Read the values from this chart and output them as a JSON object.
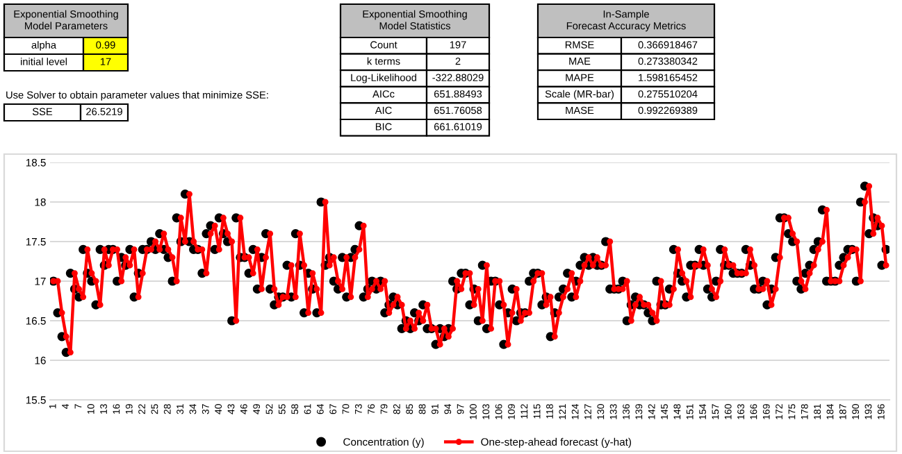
{
  "chart_data": {
    "type": "line",
    "annotations": [
      "Exponential Smoothing\nModel Parameters",
      "alpha",
      "0.99",
      "initial level",
      "17",
      "Use Solver to obtain parameter values that minimize SSE:",
      "SSE",
      "26.5219",
      "Exponential Smoothing\nModel Statistics",
      "Count",
      "197",
      "k terms",
      "2",
      "Log-Likelihood",
      "-322.88029",
      "AICc",
      "651.88493",
      "AIC",
      "651.76058",
      "BIC",
      "661.61019",
      "In-Sample\nForecast Accuracy Metrics",
      "RMSE",
      "0.366918467",
      "MAE",
      "0.273380342",
      "MAPE",
      "1.598165452",
      "Scale (MR-bar)",
      "0.275510204",
      "MASE",
      "0.992269389"
    ],
    "categories": [
      "1",
      null,
      null,
      "4",
      null,
      null,
      "7",
      null,
      null,
      "10",
      null,
      null,
      "13",
      null,
      null,
      "16",
      null,
      null,
      "19",
      null,
      null,
      "22",
      null,
      null,
      "25",
      null,
      null,
      "28",
      null,
      null,
      "31",
      null,
      null,
      "34",
      null,
      null,
      "37",
      null,
      null,
      "40",
      null,
      null,
      "43",
      null,
      null,
      "46",
      null,
      null,
      "49",
      null,
      null,
      "52",
      null,
      null,
      "55",
      null,
      null,
      "58",
      null,
      null,
      "61",
      null,
      null,
      "64",
      null,
      null,
      "67",
      null,
      null,
      "70",
      null,
      null,
      "73",
      null,
      null,
      "76",
      null,
      null,
      "79",
      null,
      null,
      "82",
      null,
      null,
      "85",
      null,
      null,
      "88",
      null,
      null,
      "91",
      null,
      null,
      "94",
      null,
      null,
      "97",
      null,
      null,
      "100",
      null,
      null,
      "103",
      null,
      null,
      "106",
      null,
      null,
      "109",
      null,
      null,
      "112",
      null,
      null,
      "115",
      null,
      null,
      "118",
      null,
      null,
      "121",
      null,
      null,
      "124",
      null,
      null,
      "127",
      null,
      null,
      "130",
      null,
      null,
      "133",
      null,
      null,
      "136",
      null,
      null,
      "139",
      null,
      null,
      "142",
      null,
      null,
      "145",
      null,
      null,
      "148",
      null,
      null,
      "151",
      null,
      null,
      "154",
      null,
      null,
      "157",
      null,
      null,
      "160",
      null,
      null,
      "163",
      null,
      null,
      "166",
      null,
      null,
      "169",
      null,
      null,
      "172",
      null,
      null,
      "175",
      null,
      null,
      "178",
      null,
      null,
      "181",
      null,
      null,
      "184",
      null,
      null,
      "187",
      null,
      null,
      "190",
      null,
      null,
      "193",
      null,
      null,
      "196",
      null
    ],
    "series": [
      {
        "name": "Concentration (y)",
        "type": "scatter",
        "color": "#000000",
        "values": [
          17.0,
          16.6,
          16.3,
          16.1,
          17.1,
          16.9,
          16.8,
          17.4,
          17.1,
          17.0,
          16.7,
          17.4,
          17.2,
          17.4,
          17.4,
          17.0,
          17.3,
          17.2,
          17.4,
          16.8,
          17.1,
          17.4,
          17.4,
          17.5,
          17.4,
          17.6,
          17.4,
          17.3,
          17.0,
          17.8,
          17.5,
          18.1,
          17.5,
          17.4,
          17.4,
          17.1,
          17.6,
          17.7,
          17.4,
          17.8,
          17.6,
          17.5,
          16.5,
          17.8,
          17.3,
          17.3,
          17.1,
          17.4,
          16.9,
          17.3,
          17.6,
          16.9,
          16.7,
          16.8,
          16.8,
          17.2,
          16.8,
          17.6,
          17.2,
          16.6,
          17.1,
          16.9,
          16.6,
          18.0,
          17.2,
          17.3,
          17.0,
          16.9,
          17.3,
          16.8,
          17.3,
          17.4,
          17.7,
          16.8,
          16.9,
          17.0,
          16.9,
          17.0,
          16.6,
          16.7,
          16.8,
          16.7,
          16.4,
          16.5,
          16.4,
          16.6,
          16.5,
          16.7,
          16.4,
          16.4,
          16.2,
          16.4,
          16.3,
          16.4,
          17.0,
          16.9,
          17.1,
          17.1,
          16.7,
          16.9,
          16.5,
          17.2,
          16.4,
          17.0,
          17.0,
          16.7,
          16.2,
          16.6,
          16.9,
          16.5,
          16.6,
          16.6,
          17.0,
          17.1,
          17.1,
          16.7,
          16.8,
          16.3,
          16.6,
          16.8,
          16.9,
          17.1,
          16.8,
          17.0,
          17.2,
          17.3,
          17.2,
          17.3,
          17.2,
          17.2,
          17.5,
          16.9,
          16.9,
          16.9,
          17.0,
          16.5,
          16.7,
          16.8,
          16.7,
          16.7,
          16.6,
          16.5,
          17.0,
          16.7,
          16.7,
          16.9,
          17.4,
          17.1,
          17.0,
          16.8,
          17.2,
          17.2,
          17.4,
          17.2,
          16.9,
          16.8,
          17.0,
          17.4,
          17.2,
          17.2,
          17.1,
          17.1,
          17.1,
          17.4,
          17.2,
          16.9,
          16.9,
          17.0,
          16.7,
          16.9,
          17.3,
          17.8,
          17.8,
          17.6,
          17.5,
          17.0,
          16.9,
          17.1,
          17.2,
          17.4,
          17.5,
          17.9,
          17.0,
          17.0,
          17.0,
          17.2,
          17.3,
          17.4,
          17.4,
          17.0,
          18.0,
          18.2,
          17.6,
          17.8,
          17.7,
          17.2,
          17.4
        ]
      },
      {
        "name": "One-step-ahead forecast (y-hat)",
        "color": "#ff0000",
        "marker": "circle",
        "values": [
          17.0,
          17.0,
          16.6,
          16.3,
          16.1,
          17.1,
          16.9,
          16.8,
          17.4,
          17.1,
          17.0,
          16.7,
          17.4,
          17.2,
          17.4,
          17.4,
          17.0,
          17.3,
          17.2,
          17.4,
          16.8,
          17.1,
          17.4,
          17.4,
          17.5,
          17.4,
          17.6,
          17.4,
          17.3,
          17.0,
          17.8,
          17.5,
          18.1,
          17.5,
          17.4,
          17.4,
          17.1,
          17.6,
          17.7,
          17.4,
          17.8,
          17.6,
          17.5,
          16.5,
          17.8,
          17.3,
          17.3,
          17.1,
          17.4,
          16.9,
          17.3,
          17.6,
          16.9,
          16.7,
          16.8,
          16.8,
          17.2,
          16.8,
          17.6,
          17.2,
          16.6,
          17.1,
          16.9,
          16.6,
          18.0,
          17.2,
          17.3,
          17.0,
          16.9,
          17.3,
          16.8,
          17.3,
          17.4,
          17.7,
          16.8,
          16.9,
          17.0,
          16.9,
          17.0,
          16.6,
          16.7,
          16.8,
          16.7,
          16.4,
          16.5,
          16.4,
          16.6,
          16.5,
          16.7,
          16.4,
          16.4,
          16.2,
          16.4,
          16.3,
          16.4,
          17.0,
          16.9,
          17.1,
          17.1,
          16.7,
          16.9,
          16.5,
          17.2,
          16.4,
          17.0,
          17.0,
          16.7,
          16.2,
          16.6,
          16.9,
          16.5,
          16.6,
          16.6,
          17.0,
          17.1,
          17.1,
          16.7,
          16.8,
          16.3,
          16.6,
          16.8,
          16.9,
          17.1,
          16.8,
          17.0,
          17.2,
          17.3,
          17.2,
          17.3,
          17.2,
          17.2,
          17.5,
          16.9,
          16.9,
          16.9,
          17.0,
          16.5,
          16.7,
          16.8,
          16.7,
          16.7,
          16.6,
          16.5,
          17.0,
          16.7,
          16.7,
          16.9,
          17.4,
          17.1,
          17.0,
          16.8,
          17.2,
          17.2,
          17.4,
          17.2,
          16.9,
          16.8,
          17.0,
          17.4,
          17.2,
          17.2,
          17.1,
          17.1,
          17.1,
          17.4,
          17.2,
          16.9,
          16.9,
          17.0,
          16.7,
          16.9,
          17.3,
          17.8,
          17.8,
          17.6,
          17.5,
          17.0,
          16.9,
          17.1,
          17.2,
          17.4,
          17.5,
          17.9,
          17.0,
          17.0,
          17.0,
          17.2,
          17.3,
          17.4,
          17.4,
          17.0,
          18.0,
          18.2,
          17.6,
          17.8,
          17.7,
          17.2
        ]
      }
    ],
    "ylim": [
      15.5,
      18.5
    ],
    "yticks": [
      15.5,
      16,
      16.5,
      17,
      17.5,
      18,
      18.5
    ],
    "grid": "y",
    "legend": "bottom"
  }
}
